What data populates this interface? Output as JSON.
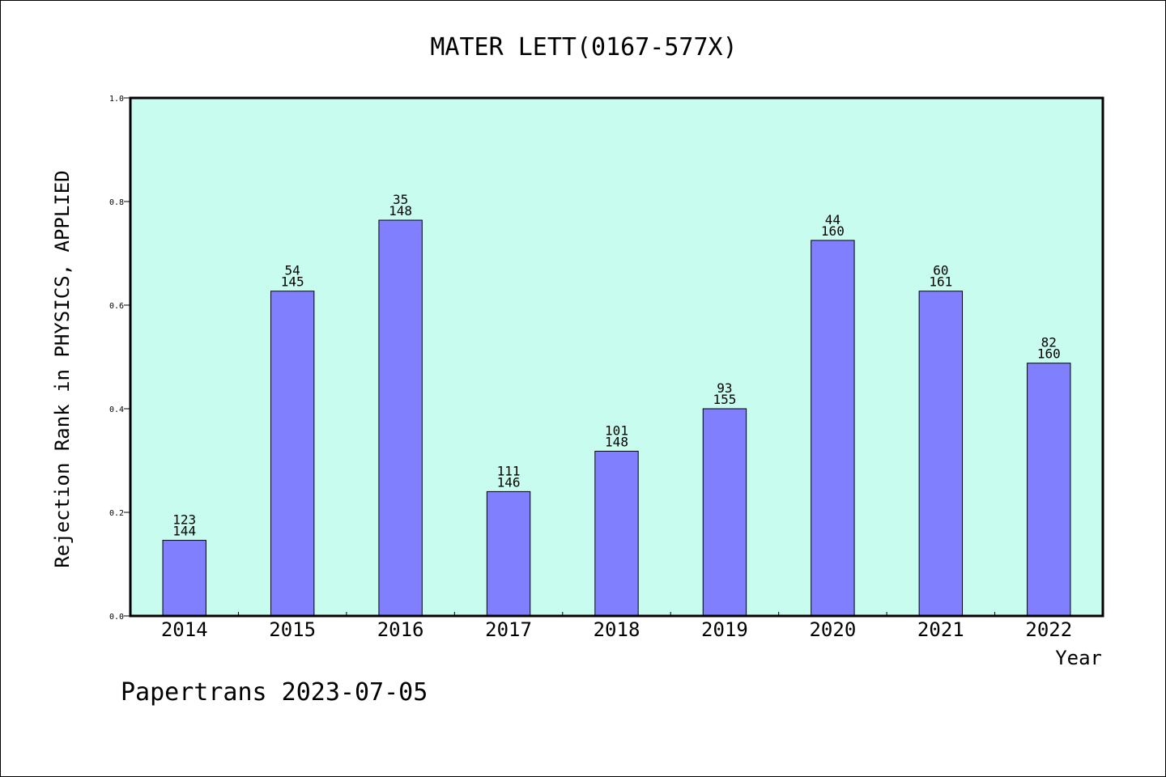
{
  "chart_data": {
    "type": "bar",
    "title": "MATER LETT(0167-577X)",
    "xlabel": "Year",
    "ylabel": "Rejection Rank in PHYSICS, APPLIED",
    "footer": "Papertrans 2023-07-05",
    "ylim": [
      0,
      1.0
    ],
    "yticks": [
      "0.0",
      "0.2",
      "0.4",
      "0.6",
      "0.8",
      "1.0"
    ],
    "categories": [
      "2014",
      "2015",
      "2016",
      "2017",
      "2018",
      "2019",
      "2020",
      "2021",
      "2022"
    ],
    "values": [
      0.146,
      0.627,
      0.764,
      0.24,
      0.318,
      0.4,
      0.725,
      0.627,
      0.488
    ],
    "ranks": [
      "123",
      "54",
      "35",
      "111",
      "101",
      "93",
      "44",
      "60",
      "82"
    ],
    "totals": [
      "144",
      "145",
      "148",
      "146",
      "148",
      "155",
      "160",
      "161",
      "160"
    ],
    "grid": false,
    "legend": "none",
    "colors": {
      "plot_background": "#c8fcee",
      "bar_fill": "#8080ff",
      "bar_stroke": "#000000"
    }
  }
}
